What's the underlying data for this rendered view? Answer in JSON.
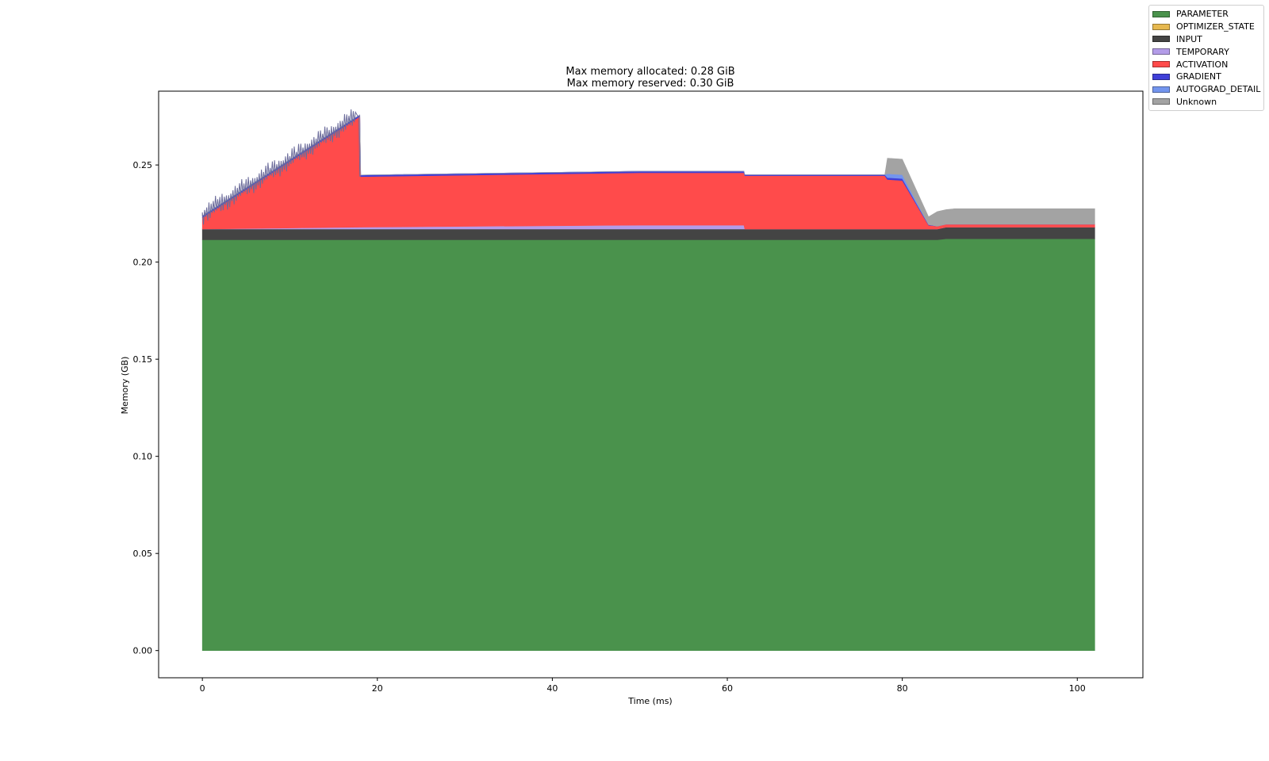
{
  "chart_data": {
    "type": "area",
    "stacked": true,
    "title": [
      "Max memory allocated: 0.28 GiB",
      "Max memory reserved: 0.30 GiB"
    ],
    "xlabel": "Time (ms)",
    "ylabel": "Memory (GB)",
    "xlim": [
      -5,
      107.5
    ],
    "ylim": [
      -0.014,
      0.288
    ],
    "xticks": [
      0,
      20,
      40,
      60,
      80,
      100
    ],
    "yticks": [
      0.0,
      0.05,
      0.1,
      0.15,
      0.2,
      0.25
    ],
    "xtick_labels": [
      "0",
      "20",
      "40",
      "60",
      "80",
      "100"
    ],
    "ytick_labels": [
      "0.00",
      "0.05",
      "0.10",
      "0.15",
      "0.20",
      "0.25"
    ],
    "grid": false,
    "legend_position": "top-right outside",
    "x": [
      0,
      18,
      18.1,
      50,
      61.9,
      62,
      78,
      78.3,
      80,
      83,
      84,
      85,
      86,
      90,
      100,
      102
    ],
    "series": [
      {
        "name": "PARAMETER",
        "color": "#4a924c",
        "values": [
          0.2115,
          0.2115,
          0.2115,
          0.2115,
          0.2115,
          0.2115,
          0.2115,
          0.2115,
          0.2115,
          0.2115,
          0.2115,
          0.212,
          0.212,
          0.212,
          0.212,
          0.212
        ]
      },
      {
        "name": "OPTIMIZER_STATE",
        "color": "#e6b84f",
        "values": [
          0,
          0,
          0,
          0,
          0,
          0,
          0,
          0,
          0,
          0,
          0,
          0,
          0,
          0,
          0,
          0
        ]
      },
      {
        "name": "INPUT",
        "color": "#444444",
        "values": [
          0.0055,
          0.0055,
          0.0055,
          0.0055,
          0.0055,
          0.0055,
          0.0055,
          0.0055,
          0.0055,
          0.0055,
          0.0055,
          0.006,
          0.006,
          0.006,
          0.006,
          0.006
        ]
      },
      {
        "name": "TEMPORARY",
        "color": "#b39ce8",
        "values": [
          0,
          0.001,
          0.001,
          0.002,
          0.002,
          0,
          0,
          0,
          0,
          0,
          0,
          0,
          0,
          0,
          0,
          0
        ]
      },
      {
        "name": "ACTIVATION",
        "color": "#ff4b4b",
        "values": [
          0.006,
          0.057,
          0.026,
          0.027,
          0.027,
          0.0275,
          0.0275,
          0.0255,
          0.025,
          0.002,
          0.0015,
          0.0015,
          0.0015,
          0.0015,
          0.0015,
          0.0015
        ]
      },
      {
        "name": "GRADIENT",
        "color": "#3f3fd8",
        "values": [
          0.0008,
          0.0008,
          0.0008,
          0.0008,
          0.0008,
          0.0005,
          0.0005,
          0.001,
          0.001,
          0.0003,
          0,
          0,
          0,
          0,
          0,
          0
        ]
      },
      {
        "name": "AUTOGRAD_DETAIL",
        "color": "#7395ee",
        "values": [
          0,
          0,
          0,
          0,
          0,
          0,
          0,
          0.002,
          0.002,
          0,
          0,
          0,
          0,
          0,
          0,
          0
        ]
      },
      {
        "name": "Unknown",
        "color": "#a3a3a3",
        "values": [
          0,
          0,
          0,
          0,
          0,
          0,
          0,
          0.008,
          0.008,
          0.004,
          0.0075,
          0.0075,
          0.008,
          0.008,
          0.008,
          0.008
        ]
      }
    ],
    "noise_region": {
      "x_start": 0,
      "x_end": 17.5,
      "amplitude": 0.012
    }
  }
}
